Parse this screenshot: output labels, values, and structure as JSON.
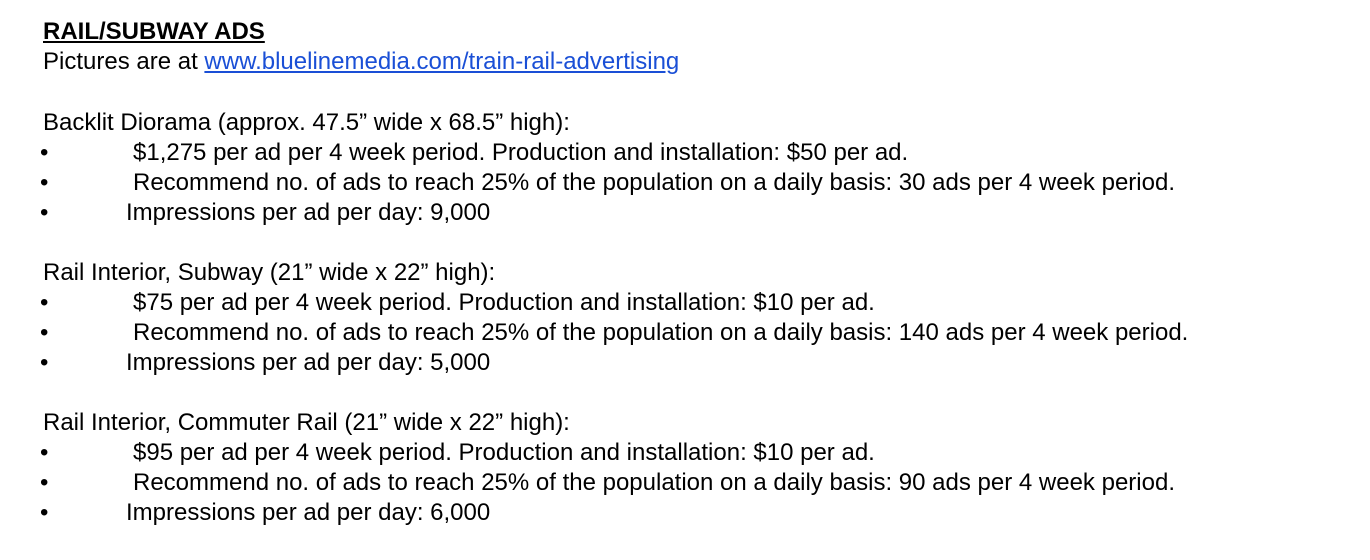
{
  "heading": "RAIL/SUBWAY ADS",
  "intro": {
    "prefix": "Pictures are at ",
    "link": "www.bluelinemedia.com/train-rail-advertising"
  },
  "bullet_symbol": "•",
  "sections": [
    {
      "title": "Backlit Diorama (approx. 47.5” wide x 68.5” high):",
      "items": [
        "$1,275 per ad per 4 week period.  Production and installation: $50 per ad.",
        "Recommend no. of ads to reach 25% of the population on a daily basis: 30 ads per 4 week period.",
        "Impressions per ad per day: 9,000"
      ]
    },
    {
      "title": "Rail Interior, Subway (21” wide x 22” high):",
      "items": [
        "$75 per ad per 4 week period.  Production and installation: $10 per ad.",
        "Recommend no. of ads to reach 25% of the population on a daily basis: 140 ads per 4 week period.",
        "Impressions per ad per day: 5,000"
      ]
    },
    {
      "title": "Rail Interior, Commuter Rail (21” wide x 22” high):",
      "items": [
        "$95 per ad per 4 week period.  Production and installation: $10 per ad.",
        "Recommend no. of ads to reach 25% of the population on a daily basis: 90 ads per 4 week period.",
        "Impressions per ad per day: 6,000"
      ]
    }
  ]
}
